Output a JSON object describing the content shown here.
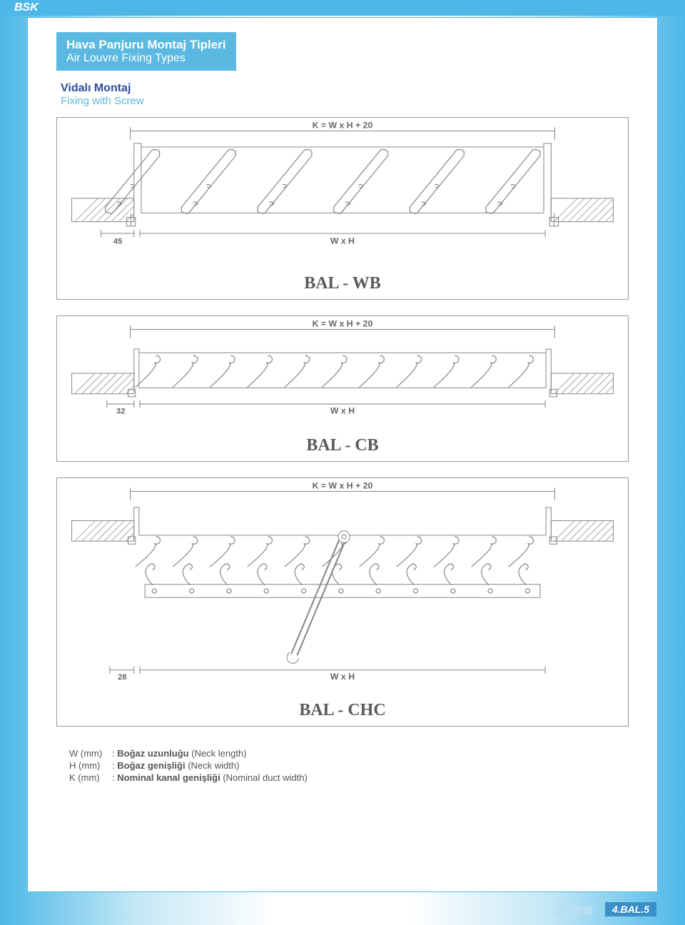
{
  "brand": "BSK",
  "header": {
    "title_tr": "Hava Panjuru Montaj Tipleri",
    "title_en": "Air Louvre Fixing Types"
  },
  "subtitle": {
    "tr": "Vidalı Montaj",
    "en": "Fixing with Screw"
  },
  "diagrams": {
    "wb": {
      "top_dim": "K = W x H + 20",
      "left_dim": "45",
      "bottom_dim": "W x H",
      "model": "BAL - WB",
      "type": "technical-drawing",
      "colors": {
        "stroke": "#888888",
        "hatch": "#aaaaaa",
        "text": "#666666"
      },
      "blade_count": 6
    },
    "cb": {
      "top_dim": "K = W x H + 20",
      "left_dim": "32",
      "bottom_dim": "W x H",
      "model": "BAL - CB",
      "type": "technical-drawing",
      "colors": {
        "stroke": "#888888",
        "hatch": "#aaaaaa",
        "text": "#666666"
      },
      "blade_count": 11
    },
    "chc": {
      "top_dim": "K = W x H + 20",
      "left_dim": "28",
      "bottom_dim": "W x H",
      "model": "BAL - CHC",
      "type": "technical-drawing",
      "colors": {
        "stroke": "#888888",
        "hatch": "#aaaaaa",
        "text": "#666666"
      },
      "blade_count": 11
    }
  },
  "legend": {
    "W": {
      "sym": "W (mm)",
      "tr": "Boğaz uzunluğu",
      "en": "(Neck length)"
    },
    "H": {
      "sym": "H (mm)",
      "tr": "Boğaz genişliği",
      "en": "(Neck width)"
    },
    "K": {
      "sym": "K (mm)",
      "tr": "Nominal kanal genişliği",
      "en": "(Nominal duct width)"
    }
  },
  "page_number": "4.BAL.5"
}
